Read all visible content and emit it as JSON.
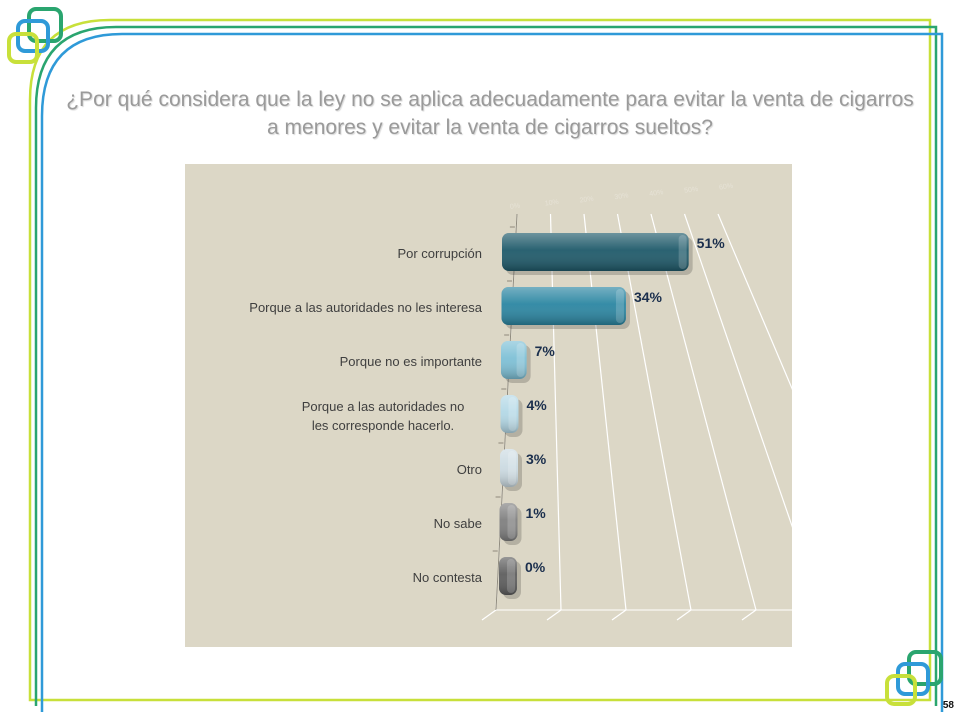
{
  "slide": {
    "title": "¿Por qué considera que la ley no se aplica adecuadamente para evitar la venta de cigarros a menores y evitar la venta de cigarros sueltos?",
    "page_number": "58"
  },
  "colors": {
    "frame_green": "#c8e03a",
    "frame_teal": "#2aa56f",
    "frame_blue": "#2f9ad8",
    "panel_bg": "#dcd7c6",
    "data_label": "#1b2f4d"
  },
  "chart_data": {
    "type": "bar",
    "orientation": "horizontal",
    "categories": [
      "Por corrupción",
      "Porque a las autoridades no les interesa",
      "Porque no es importante",
      "Porque a las autoridades no les corresponde hacerlo.",
      "Otro",
      "No sabe",
      "No contesta"
    ],
    "values": [
      51,
      34,
      7,
      4,
      3,
      1,
      0
    ],
    "data_labels": [
      "51%",
      "34%",
      "7%",
      "4%",
      "3%",
      "1%",
      "0%"
    ],
    "bar_colors": [
      "#1f5a6a",
      "#2b86a2",
      "#7ec0d6",
      "#b3d8e6",
      "#ccdbe2",
      "#7f7f7f",
      "#5e5e5e"
    ],
    "axis_ticks": [
      "0%",
      "10%",
      "20%",
      "30%",
      "40%",
      "50%",
      "60%"
    ],
    "xlim": [
      0,
      60
    ],
    "title": "",
    "xlabel": "",
    "ylabel": "",
    "grid": true,
    "legend": "none"
  }
}
